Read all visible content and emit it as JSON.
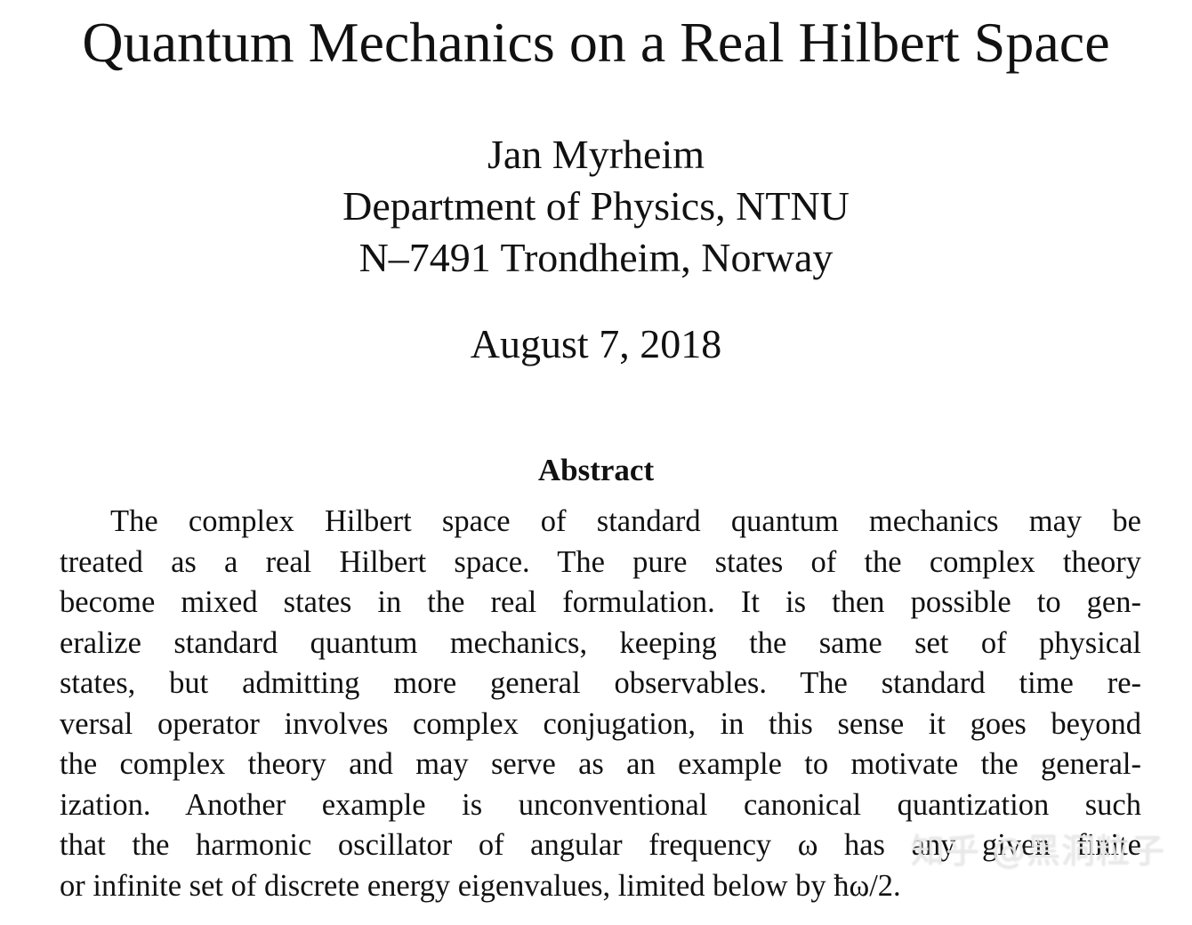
{
  "paper": {
    "title": "Quantum Mechanics on a Real Hilbert Space",
    "author": {
      "name": "Jan Myrheim",
      "department": "Department of Physics, NTNU",
      "address": "N–7491 Trondheim, Norway"
    },
    "date": "August 7, 2018",
    "abstract": {
      "heading": "Abstract",
      "lines": [
        "The complex Hilbert space of standard quantum mechanics may be",
        "treated as a real Hilbert space. The pure states of the complex theory",
        "become mixed states in the real formulation. It is then possible to gen-",
        "eralize standard quantum mechanics, keeping the same set of physical",
        "states, but admitting more general observables. The standard time re-",
        "versal operator involves complex conjugation, in this sense it goes beyond",
        "the complex theory and may serve as an example to motivate the general-",
        "ization. Another example is unconventional canonical quantization such",
        "that the harmonic oscillator of angular frequency ω has any given finite",
        "or infinite set of discrete energy eigenvalues, limited below by ħω/2."
      ]
    }
  },
  "watermark": {
    "text": "知乎 @黑洞粒子"
  }
}
